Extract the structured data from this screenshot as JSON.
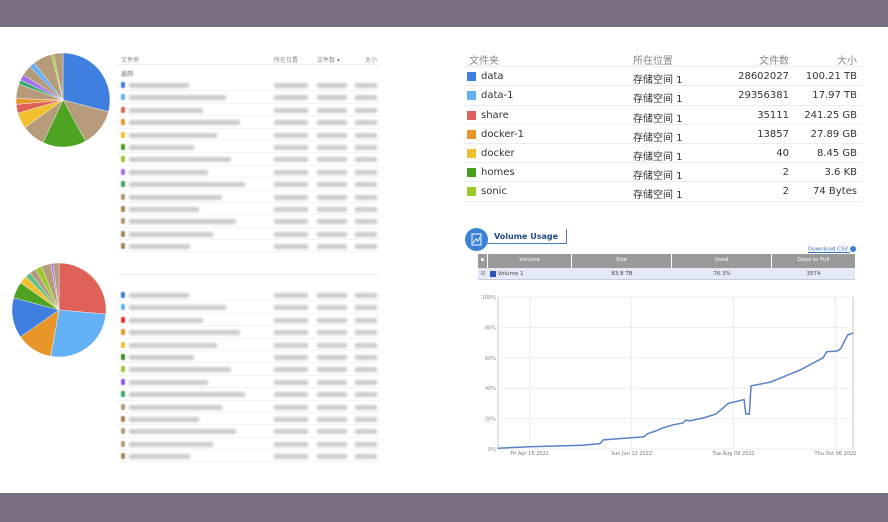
{
  "left_tables": {
    "top": {
      "headers": [
        "文件夹",
        "所在位置",
        "文件数 ▾",
        "大小"
      ],
      "back_label": "返回",
      "row_colors": [
        "#3f7fe0",
        "#63b0f7",
        "#e0605a",
        "#e8962a",
        "#f0c030",
        "#4a9e1e",
        "#9bc72a",
        "#a570f0",
        "#3aa86a",
        "#b49a78",
        "#a8865a",
        "#b49a78",
        "#a8865a",
        "#a8865a"
      ]
    },
    "bottom": {
      "row_colors": [
        "#3f7fe0",
        "#63b0f7",
        "#e0302a",
        "#e8962a",
        "#f0c030",
        "#3a8e1e",
        "#9bc72a",
        "#9050f0",
        "#3aa86a",
        "#b49a78",
        "#a8865a",
        "#b49a78",
        "#b49a78",
        "#a8865a"
      ]
    }
  },
  "pies": {
    "top": [
      [
        "#3f7fe0",
        0.29
      ],
      [
        "#b59b79",
        0.13
      ],
      [
        "#4fa322",
        0.15
      ],
      [
        "#b59b79",
        0.08
      ],
      [
        "#f0c030",
        0.055
      ],
      [
        "#e0605a",
        0.03
      ],
      [
        "#e8962a",
        0.02
      ],
      [
        "#b59b79",
        0.05
      ],
      [
        "#3aa86a",
        0.015
      ],
      [
        "#a570f0",
        0.02
      ],
      [
        "#b59b79",
        0.035
      ],
      [
        "#63b0f7",
        0.02
      ],
      [
        "#b59b79",
        0.065
      ],
      [
        "#9bc72a",
        0.008
      ],
      [
        "#b59b79",
        0.032
      ]
    ],
    "bottom": [
      [
        "#e0605a",
        0.264
      ],
      [
        "#63b0f7",
        0.264
      ],
      [
        "#e8962a",
        0.125
      ],
      [
        "#3f7fe0",
        0.139
      ],
      [
        "#4fa322",
        0.056
      ],
      [
        "#f0c030",
        0.028
      ],
      [
        "#5ac08a",
        0.019
      ],
      [
        "#b59b79",
        0.022
      ],
      [
        "#9bc72a",
        0.022
      ],
      [
        "#b59b79",
        0.033
      ],
      [
        "#a570f0",
        0.008
      ],
      [
        "#b59b79",
        0.02
      ]
    ]
  },
  "folders": {
    "headers": {
      "name": "文件夹",
      "location": "所在位置",
      "count": "文件数",
      "size": "大小"
    },
    "rows": [
      {
        "name": "data",
        "location": "存储空间 1",
        "count": "28602027",
        "size": "100.21 TB",
        "color": "#3f7fe0"
      },
      {
        "name": "data-1",
        "location": "存储空间 1",
        "count": "29356381",
        "size": "17.97 TB",
        "color": "#63b0f7"
      },
      {
        "name": "share",
        "location": "存储空间 1",
        "count": "35111",
        "size": "241.25 GB",
        "color": "#e0605a"
      },
      {
        "name": "docker-1",
        "location": "存储空间 1",
        "count": "13857",
        "size": "27.89 GB",
        "color": "#e8962a"
      },
      {
        "name": "docker",
        "location": "存储空间 1",
        "count": "40",
        "size": "8.45 GB",
        "color": "#f0c030"
      },
      {
        "name": "homes",
        "location": "存储空间 1",
        "count": "2",
        "size": "3.6 KB",
        "color": "#4a9e1e"
      },
      {
        "name": "sonic",
        "location": "存储空间 1",
        "count": "2",
        "size": "74 Bytes",
        "color": "#9bc72a"
      }
    ]
  },
  "volume_usage": {
    "title": "Volume Usage",
    "download_label": "Download CSV",
    "headers": {
      "volume": "Volume",
      "size": "Size",
      "used": "Used",
      "days": "Days to Full"
    },
    "row": {
      "volume": "Volume 1",
      "size": "83.8 TB",
      "used": "76.3%",
      "days": "3574",
      "color": "#2a52b8"
    }
  },
  "chart_data": {
    "type": "line",
    "ylim": [
      0,
      100
    ],
    "xlim": [
      "2022-03-28",
      "2022-10-16"
    ],
    "yticks": [
      "0%",
      "20%",
      "40%",
      "60%",
      "80%",
      "100%"
    ],
    "xticks": [
      {
        "date": "2022-04-15",
        "label": "Fri Apr 15 2022"
      },
      {
        "date": "2022-06-12",
        "label": "Sun Jun 12 2022"
      },
      {
        "date": "2022-08-09",
        "label": "Tue Aug 09 2022"
      },
      {
        "date": "2022-10-06",
        "label": "Thu Oct 06 2022"
      }
    ],
    "grid": true,
    "color": "#5a82c8",
    "series": [
      {
        "points": [
          [
            "2022-03-28",
            0.5
          ],
          [
            "2022-04-15",
            1.5
          ],
          [
            "2022-05-15",
            2.5
          ],
          [
            "2022-05-25",
            3.5
          ],
          [
            "2022-05-27",
            6
          ],
          [
            "2022-06-19",
            8
          ],
          [
            "2022-06-21",
            10
          ],
          [
            "2022-06-26",
            12
          ],
          [
            "2022-06-30",
            14
          ],
          [
            "2022-07-06",
            16
          ],
          [
            "2022-07-11",
            17
          ],
          [
            "2022-07-13",
            19
          ],
          [
            "2022-07-15",
            18.5
          ],
          [
            "2022-07-23",
            20.5
          ],
          [
            "2022-07-30",
            23
          ],
          [
            "2022-08-06",
            30
          ],
          [
            "2022-08-15",
            32.5
          ],
          [
            "2022-08-16",
            23
          ],
          [
            "2022-08-18",
            23
          ],
          [
            "2022-08-19",
            41.5
          ],
          [
            "2022-08-30",
            44
          ],
          [
            "2022-09-16",
            52
          ],
          [
            "2022-09-29",
            60
          ],
          [
            "2022-10-01",
            64
          ],
          [
            "2022-10-07",
            64.5
          ],
          [
            "2022-10-09",
            66
          ],
          [
            "2022-10-13",
            75
          ],
          [
            "2022-10-16",
            76.3
          ]
        ]
      }
    ]
  }
}
